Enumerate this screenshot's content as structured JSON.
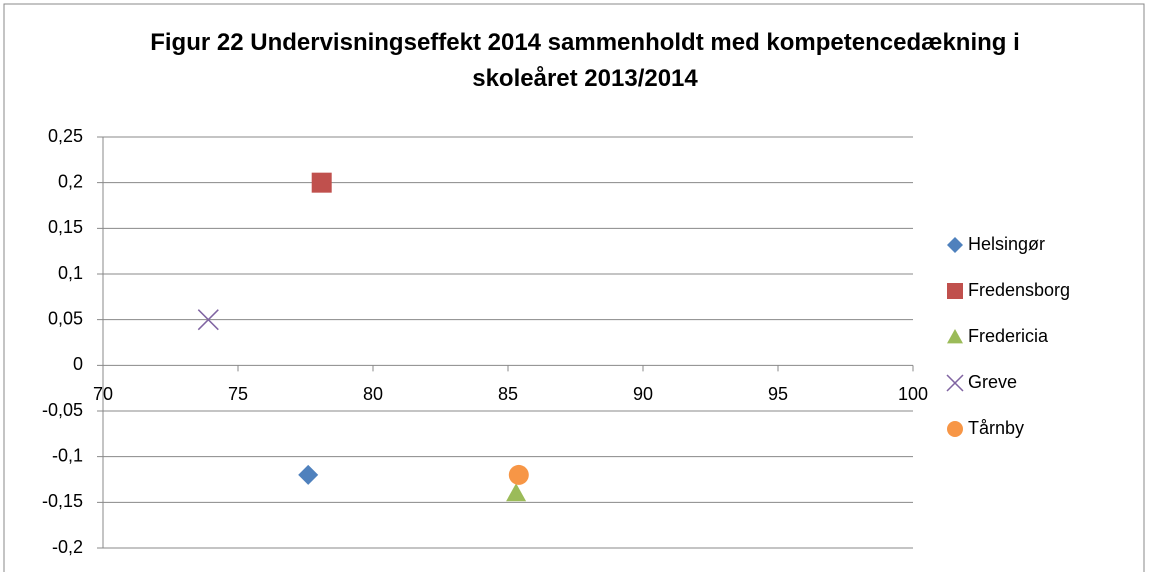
{
  "chart_data": {
    "type": "scatter",
    "title": "Figur 22 Undervisningseffekt 2014 sammenholdt med kompetencedækning i skoleåret 2013/2014",
    "xlim": [
      70,
      100
    ],
    "xticks": [
      70,
      75,
      80,
      85,
      90,
      95,
      100
    ],
    "ylim": [
      -0.2,
      0.25
    ],
    "yticks": [
      {
        "value": -0.2,
        "label": "-0,2"
      },
      {
        "value": -0.15,
        "label": "-0,15"
      },
      {
        "value": -0.1,
        "label": "-0,1"
      },
      {
        "value": -0.05,
        "label": "-0,05"
      },
      0,
      {
        "value": 0.05,
        "label": "0,05"
      },
      {
        "value": 0.1,
        "label": "0,1"
      },
      {
        "value": 0.15,
        "label": "0,15"
      },
      {
        "value": 0.2,
        "label": "0,2"
      },
      {
        "value": 0.25,
        "label": "0,25"
      }
    ],
    "grid": true,
    "legend": "right",
    "series": [
      {
        "name": "Helsingør",
        "color": "#4f81bd",
        "marker": "diamond",
        "x": [
          77.6
        ],
        "values": [
          -0.12
        ]
      },
      {
        "name": "Fredensborg",
        "color": "#c0504d",
        "marker": "square",
        "x": [
          78.1
        ],
        "values": [
          0.2
        ]
      },
      {
        "name": "Fredericia",
        "color": "#9bbb59",
        "marker": "triangle",
        "x": [
          85.3
        ],
        "values": [
          -0.14
        ]
      },
      {
        "name": "Greve",
        "color": "#8064a2",
        "marker": "x",
        "x": [
          73.9
        ],
        "values": [
          0.05
        ]
      },
      {
        "name": "Tårnby",
        "color": "#f79646",
        "marker": "circle",
        "x": [
          85.4
        ],
        "values": [
          -0.12
        ]
      }
    ]
  }
}
